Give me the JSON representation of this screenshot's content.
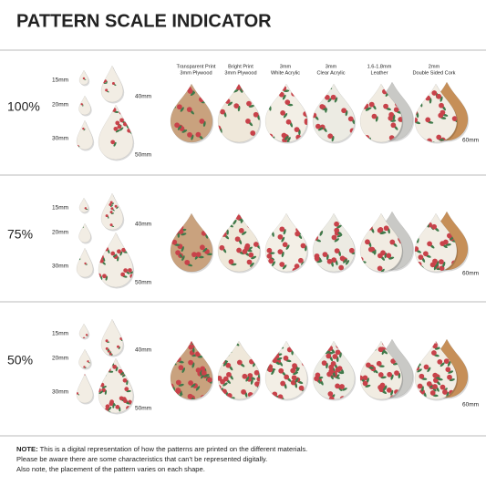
{
  "title": "PATTERN SCALE INDICATOR",
  "materials": [
    {
      "line1": "Transparent Print",
      "line2": "3mm Plywood"
    },
    {
      "line1": "Bright Print",
      "line2": "3mm Plywood"
    },
    {
      "line1": "3mm",
      "line2": "White Acrylic"
    },
    {
      "line1": "3mm",
      "line2": "Clear Acrylic"
    },
    {
      "line1": "1.6-1.8mm",
      "line2": "Leather"
    },
    {
      "line1": "2mm",
      "line2": "Double Sided Cork"
    }
  ],
  "rows": [
    {
      "scale": "100%",
      "sizes": [
        "15mm",
        "20mm",
        "30mm",
        "40mm",
        "50mm"
      ],
      "material_size": "60mm"
    },
    {
      "scale": "75%",
      "sizes": [
        "15mm",
        "20mm",
        "30mm",
        "40mm",
        "50mm"
      ],
      "material_size": "60mm"
    },
    {
      "scale": "50%",
      "sizes": [
        "15mm",
        "20mm",
        "30mm",
        "40mm",
        "50mm"
      ],
      "material_size": "60mm"
    }
  ],
  "note": {
    "label": "NOTE:",
    "lines": [
      "This is a digital representation of how the patterns are printed on the different materials.",
      "Please be aware there are some characteristics that can't be represented digitally.",
      "Also note, the placement of the pattern varies on each shape."
    ]
  }
}
